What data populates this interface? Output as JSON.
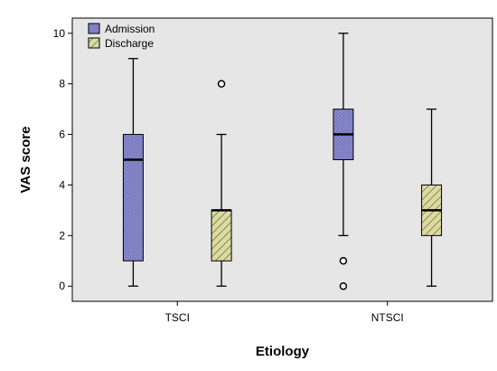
{
  "chart_data": {
    "type": "boxplot",
    "xlabel": "Etiology",
    "ylabel": "VAS score",
    "ylim": [
      -0.6,
      10.6
    ],
    "yticks": [
      0,
      2,
      4,
      6,
      8,
      10
    ],
    "grid": false,
    "legend_position": "top-left",
    "categories": [
      "TSCI",
      "NTSCI"
    ],
    "series": [
      {
        "name": "Admission",
        "color": "#8484c8",
        "pattern": "dotted",
        "boxes": [
          {
            "category": "TSCI",
            "min": 0,
            "q1": 1,
            "median": 5,
            "q3": 6,
            "max": 9,
            "outliers": []
          },
          {
            "category": "NTSCI",
            "min": 2,
            "q1": 5,
            "median": 6,
            "q3": 7,
            "max": 10,
            "outliers": [
              1,
              0
            ]
          }
        ]
      },
      {
        "name": "Discharge",
        "color": "#dcdca0",
        "pattern": "hatched",
        "boxes": [
          {
            "category": "TSCI",
            "min": 0,
            "q1": 1,
            "median": 3,
            "q3": 3,
            "max": 6,
            "outliers": [
              8
            ]
          },
          {
            "category": "NTSCI",
            "min": 0,
            "q1": 2,
            "median": 3,
            "q3": 4,
            "max": 7,
            "outliers": []
          }
        ]
      }
    ]
  }
}
